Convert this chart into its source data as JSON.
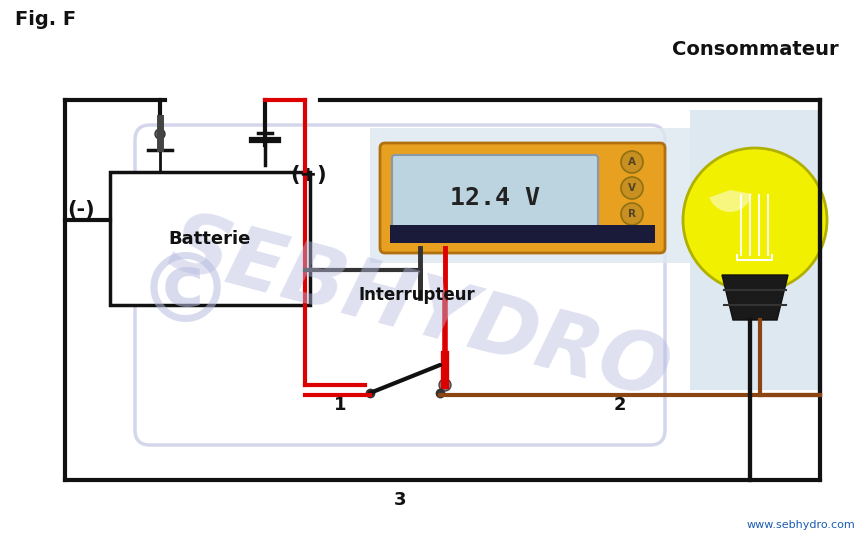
{
  "title": "Fig. F",
  "background_color": "#ffffff",
  "watermark_text": "SEBHYDRO",
  "watermark_color": "#b8bce0",
  "copyright_char": "©",
  "website": "www.sebhydro.com",
  "website_color": "#1a5cb0",
  "consommateur_label": "Consommateur",
  "batterie_label": "Batterie",
  "interrupteur_label": "Interrupteur",
  "voltmeter_value": "12.4 V",
  "minus_label": "(-)",
  "plus_label": "(+)",
  "label_1": "1",
  "label_2": "2",
  "label_3": "3",
  "wire_black": "#111111",
  "wire_red": "#dd0000",
  "wire_brown": "#8B4513",
  "wire_dark_navy": "#1a1a3a",
  "voltmeter_body": "#E8A020",
  "voltmeter_screen": "#bcd4e0",
  "voltmeter_text": "#222222",
  "battery_border": "#111111",
  "battery_fill": "#ffffff",
  "bulb_yellow": "#f0f000",
  "bulb_base_dark": "#1a1a1a",
  "bulb_bg": "#dde8f0",
  "switch_dark": "#222222"
}
